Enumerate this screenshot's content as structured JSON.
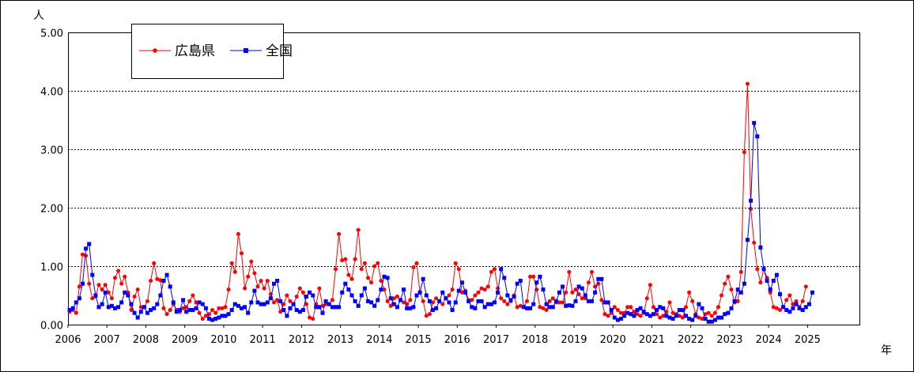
{
  "chart_data": {
    "type": "line",
    "y_unit": "人",
    "x_unit": "年",
    "ylim": [
      0,
      5
    ],
    "y_ticks": [
      "0.00",
      "1.00",
      "2.00",
      "3.00",
      "4.00",
      "5.00"
    ],
    "x_ticks": [
      "2006",
      "2007",
      "2008",
      "2009",
      "2010",
      "2011",
      "2012",
      "2013",
      "2014",
      "2015",
      "2016",
      "2017",
      "2018",
      "2019",
      "2020",
      "2021",
      "2022",
      "2023",
      "2024",
      "2025"
    ],
    "grid": "horizontal-dashed",
    "legend": "top-left",
    "x_start": "2006-01",
    "series": [
      {
        "name": "広島県",
        "color": "#ff0000",
        "marker": "circle",
        "values": [
          0.22,
          0.25,
          0.2,
          0.65,
          1.2,
          1.18,
          0.7,
          0.45,
          0.48,
          0.68,
          0.6,
          0.68,
          0.55,
          0.45,
          0.8,
          0.92,
          0.7,
          0.82,
          0.55,
          0.25,
          0.48,
          0.6,
          0.3,
          0.3,
          0.4,
          0.75,
          1.05,
          0.78,
          0.76,
          0.28,
          0.18,
          0.25,
          0.35,
          0.25,
          0.22,
          0.28,
          0.3,
          0.4,
          0.5,
          0.38,
          0.2,
          0.1,
          0.15,
          0.18,
          0.25,
          0.2,
          0.28,
          0.28,
          0.3,
          0.6,
          1.05,
          0.9,
          1.55,
          1.22,
          0.62,
          0.82,
          1.08,
          0.88,
          0.65,
          0.75,
          0.62,
          0.75,
          0.52,
          0.38,
          0.42,
          0.22,
          0.35,
          0.5,
          0.4,
          0.35,
          0.48,
          0.62,
          0.55,
          0.35,
          0.12,
          0.1,
          0.35,
          0.62,
          0.32,
          0.35,
          0.35,
          0.42,
          0.95,
          1.55,
          1.1,
          1.12,
          0.85,
          0.78,
          1.12,
          1.62,
          0.95,
          1.05,
          0.8,
          0.72,
          1.0,
          1.05,
          0.75,
          0.6,
          0.4,
          0.32,
          0.45,
          0.48,
          0.42,
          0.38,
          0.35,
          0.42,
          0.98,
          1.05,
          0.55,
          0.4,
          0.15,
          0.18,
          0.38,
          0.45,
          0.4,
          0.35,
          0.45,
          0.5,
          0.6,
          1.05,
          0.95,
          0.55,
          0.58,
          0.42,
          0.42,
          0.5,
          0.55,
          0.62,
          0.6,
          0.65,
          0.9,
          0.95,
          0.62,
          0.45,
          0.4,
          0.35,
          0.4,
          0.5,
          0.3,
          0.32,
          0.3,
          0.4,
          0.82,
          0.82,
          0.6,
          0.3,
          0.28,
          0.25,
          0.4,
          0.45,
          0.38,
          0.38,
          0.38,
          0.55,
          0.9,
          0.55,
          0.6,
          0.52,
          0.45,
          0.45,
          0.72,
          0.9,
          0.65,
          0.7,
          0.42,
          0.18,
          0.15,
          0.2,
          0.3,
          0.25,
          0.2,
          0.2,
          0.3,
          0.3,
          0.22,
          0.18,
          0.15,
          0.2,
          0.45,
          0.68,
          0.3,
          0.18,
          0.12,
          0.15,
          0.22,
          0.38,
          0.2,
          0.18,
          0.15,
          0.12,
          0.3,
          0.55,
          0.4,
          0.18,
          0.12,
          0.1,
          0.18,
          0.2,
          0.15,
          0.2,
          0.3,
          0.5,
          0.7,
          0.82,
          0.6,
          0.38,
          0.4,
          0.9,
          2.95,
          4.12,
          1.98,
          1.4,
          0.95,
          0.72,
          0.95,
          0.8,
          0.55,
          0.3,
          0.28,
          0.25,
          0.3,
          0.42,
          0.5,
          0.35,
          0.4,
          0.3,
          0.4,
          0.65
        ]
      },
      {
        "name": "全国",
        "color": "#0000ff",
        "marker": "square",
        "values": [
          0.25,
          0.28,
          0.38,
          0.45,
          0.7,
          1.3,
          1.38,
          0.85,
          0.5,
          0.3,
          0.35,
          0.55,
          0.3,
          0.32,
          0.28,
          0.3,
          0.38,
          0.55,
          0.5,
          0.35,
          0.2,
          0.12,
          0.22,
          0.3,
          0.2,
          0.25,
          0.28,
          0.35,
          0.5,
          0.75,
          0.85,
          0.65,
          0.38,
          0.22,
          0.25,
          0.42,
          0.22,
          0.25,
          0.25,
          0.28,
          0.38,
          0.35,
          0.28,
          0.1,
          0.08,
          0.1,
          0.12,
          0.15,
          0.15,
          0.18,
          0.25,
          0.35,
          0.32,
          0.28,
          0.3,
          0.2,
          0.38,
          0.58,
          0.38,
          0.35,
          0.35,
          0.38,
          0.45,
          0.7,
          0.75,
          0.4,
          0.25,
          0.15,
          0.28,
          0.35,
          0.25,
          0.22,
          0.25,
          0.48,
          0.55,
          0.5,
          0.3,
          0.3,
          0.2,
          0.4,
          0.35,
          0.3,
          0.3,
          0.3,
          0.55,
          0.7,
          0.6,
          0.5,
          0.4,
          0.32,
          0.5,
          0.62,
          0.4,
          0.38,
          0.32,
          0.42,
          0.6,
          0.82,
          0.8,
          0.45,
          0.35,
          0.3,
          0.42,
          0.6,
          0.28,
          0.28,
          0.3,
          0.5,
          0.55,
          0.78,
          0.5,
          0.4,
          0.25,
          0.28,
          0.4,
          0.55,
          0.45,
          0.38,
          0.25,
          0.38,
          0.58,
          0.72,
          0.55,
          0.4,
          0.3,
          0.28,
          0.4,
          0.4,
          0.3,
          0.35,
          0.35,
          0.38,
          0.55,
          0.95,
          0.8,
          0.5,
          0.42,
          0.48,
          0.7,
          0.75,
          0.3,
          0.28,
          0.28,
          0.35,
          0.72,
          0.82,
          0.6,
          0.35,
          0.3,
          0.3,
          0.4,
          0.55,
          0.65,
          0.32,
          0.33,
          0.32,
          0.4,
          0.65,
          0.62,
          0.5,
          0.4,
          0.4,
          0.55,
          0.78,
          0.78,
          0.38,
          0.38,
          0.25,
          0.12,
          0.08,
          0.1,
          0.15,
          0.2,
          0.18,
          0.15,
          0.25,
          0.28,
          0.22,
          0.18,
          0.15,
          0.18,
          0.25,
          0.3,
          0.28,
          0.15,
          0.12,
          0.1,
          0.15,
          0.25,
          0.25,
          0.15,
          0.1,
          0.08,
          0.15,
          0.35,
          0.28,
          0.1,
          0.05,
          0.05,
          0.08,
          0.12,
          0.12,
          0.18,
          0.2,
          0.28,
          0.4,
          0.6,
          0.55,
          0.7,
          1.45,
          2.12,
          3.45,
          3.22,
          1.32,
          0.95,
          0.75,
          0.6,
          0.75,
          0.85,
          0.52,
          0.3,
          0.25,
          0.22,
          0.28,
          0.35,
          0.28,
          0.25,
          0.3,
          0.35,
          0.55
        ]
      }
    ]
  }
}
